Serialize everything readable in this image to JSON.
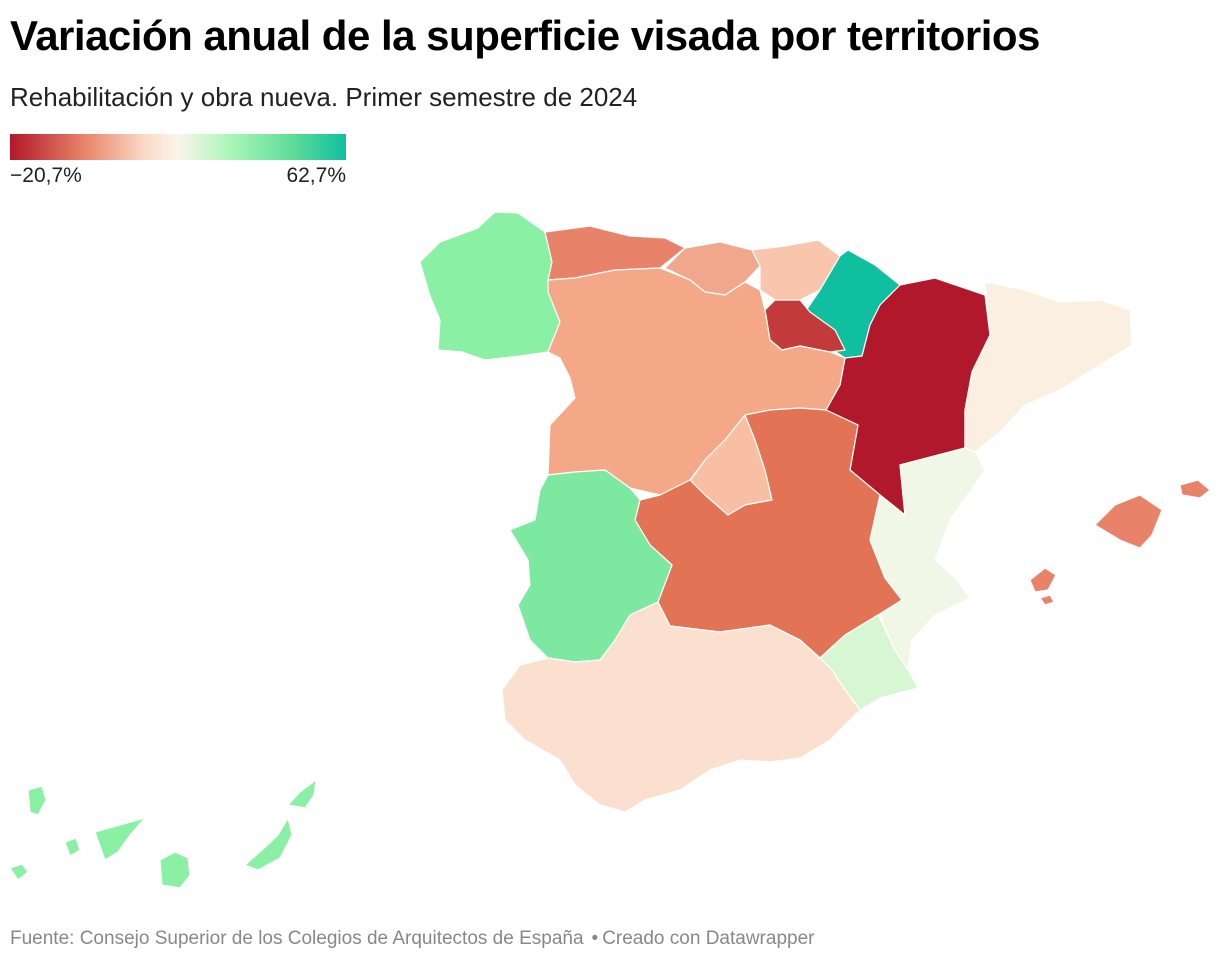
{
  "header": {
    "title": "Variación anual de la superficie visada por territorios",
    "subtitle": "Rehabilitación y obra nueva. Primer semestre de 2024"
  },
  "legend": {
    "min_label": "−20,7%",
    "max_label": "62,7%",
    "min_value": -20.7,
    "max_value": 62.7,
    "colors": [
      "#b2182b",
      "#e8836a",
      "#fad9c6",
      "#fbf5ec",
      "#a8f6b6",
      "#5fdc99",
      "#10bfa0"
    ]
  },
  "regions": [
    {
      "key": "galicia",
      "level": 0.72,
      "color": "#8af0a3"
    },
    {
      "key": "asturias",
      "level": 0.1,
      "color": "#e8836a"
    },
    {
      "key": "cantabria",
      "level": 0.16,
      "color": "#f0a78c"
    },
    {
      "key": "pais-vasco",
      "level": 0.2,
      "color": "#f9c6ad"
    },
    {
      "key": "navarra",
      "level": 1.0,
      "color": "#10bfa0"
    },
    {
      "key": "la-rioja",
      "level": 0.02,
      "color": "#c23a3a"
    },
    {
      "key": "aragon",
      "level": 0.0,
      "color": "#b2182b"
    },
    {
      "key": "cataluna",
      "level": 0.34,
      "color": "#fbefe2"
    },
    {
      "key": "castilla-y-leon",
      "level": 0.16,
      "color": "#f5a888"
    },
    {
      "key": "madrid",
      "level": 0.2,
      "color": "#f8bfa4"
    },
    {
      "key": "castilla-la-mancha",
      "level": 0.08,
      "color": "#e27355"
    },
    {
      "key": "extremadura",
      "level": 0.74,
      "color": "#7de8a0"
    },
    {
      "key": "comunidad-valenciana",
      "level": 0.46,
      "color": "#f1f7e6"
    },
    {
      "key": "murcia",
      "level": 0.58,
      "color": "#d7f7d3"
    },
    {
      "key": "andalucia",
      "level": 0.26,
      "color": "#fbe0d0"
    },
    {
      "key": "baleares",
      "level": 0.1,
      "color": "#e8836a"
    },
    {
      "key": "canarias",
      "level": 0.72,
      "color": "#8af0a3"
    }
  ],
  "footer": {
    "source": "Fuente: Consejo Superior de los Colegios de Arquitectos de España",
    "credit": "Creado con Datawrapper"
  }
}
